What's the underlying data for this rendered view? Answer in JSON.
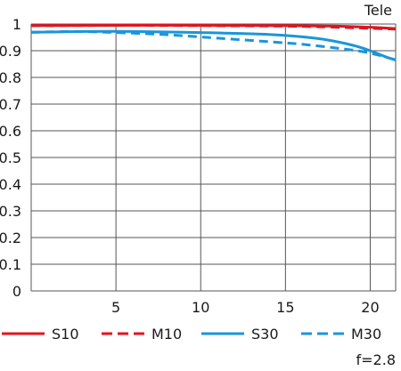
{
  "chart_data": {
    "type": "line",
    "title": "Tele",
    "footnote": "f=2.8",
    "xlabel": "",
    "ylabel": "",
    "xlim": [
      0,
      21.5
    ],
    "ylim": [
      0,
      1
    ],
    "x_ticks": [
      "5",
      "10",
      "15",
      "20"
    ],
    "y_ticks": [
      "0",
      "0.1",
      "0.2",
      "0.3",
      "0.4",
      "0.5",
      "0.6",
      "0.7",
      "0.8",
      "0.9",
      "1"
    ],
    "grid": true,
    "legend_position": "bottom",
    "series": [
      {
        "name": "S10",
        "color": "#e0141e",
        "dash": "solid",
        "points": [
          [
            0,
            0.994
          ],
          [
            5,
            0.995
          ],
          [
            10,
            0.995
          ],
          [
            15,
            0.994
          ],
          [
            18,
            0.992
          ],
          [
            20,
            0.988
          ],
          [
            21.5,
            0.983
          ]
        ]
      },
      {
        "name": "M10",
        "color": "#e0141e",
        "dash": "dashed",
        "points": [
          [
            0,
            0.994
          ],
          [
            5,
            0.995
          ],
          [
            10,
            0.994
          ],
          [
            15,
            0.992
          ],
          [
            18,
            0.988
          ],
          [
            20,
            0.984
          ],
          [
            21.5,
            0.981
          ]
        ]
      },
      {
        "name": "S30",
        "color": "#1a96d9",
        "dash": "solid",
        "points": [
          [
            0,
            0.969
          ],
          [
            3,
            0.972
          ],
          [
            6,
            0.972
          ],
          [
            10,
            0.968
          ],
          [
            14,
            0.961
          ],
          [
            16,
            0.952
          ],
          [
            17.5,
            0.94
          ],
          [
            19,
            0.92
          ],
          [
            20,
            0.9
          ],
          [
            21,
            0.875
          ],
          [
            21.5,
            0.865
          ]
        ]
      },
      {
        "name": "M30",
        "color": "#1a96d9",
        "dash": "dashed",
        "points": [
          [
            0,
            0.969
          ],
          [
            2.5,
            0.972
          ],
          [
            5,
            0.968
          ],
          [
            8,
            0.96
          ],
          [
            11,
            0.947
          ],
          [
            14,
            0.934
          ],
          [
            16,
            0.924
          ],
          [
            18,
            0.91
          ],
          [
            19.5,
            0.897
          ],
          [
            20.5,
            0.883
          ],
          [
            21.5,
            0.866
          ]
        ]
      }
    ]
  }
}
